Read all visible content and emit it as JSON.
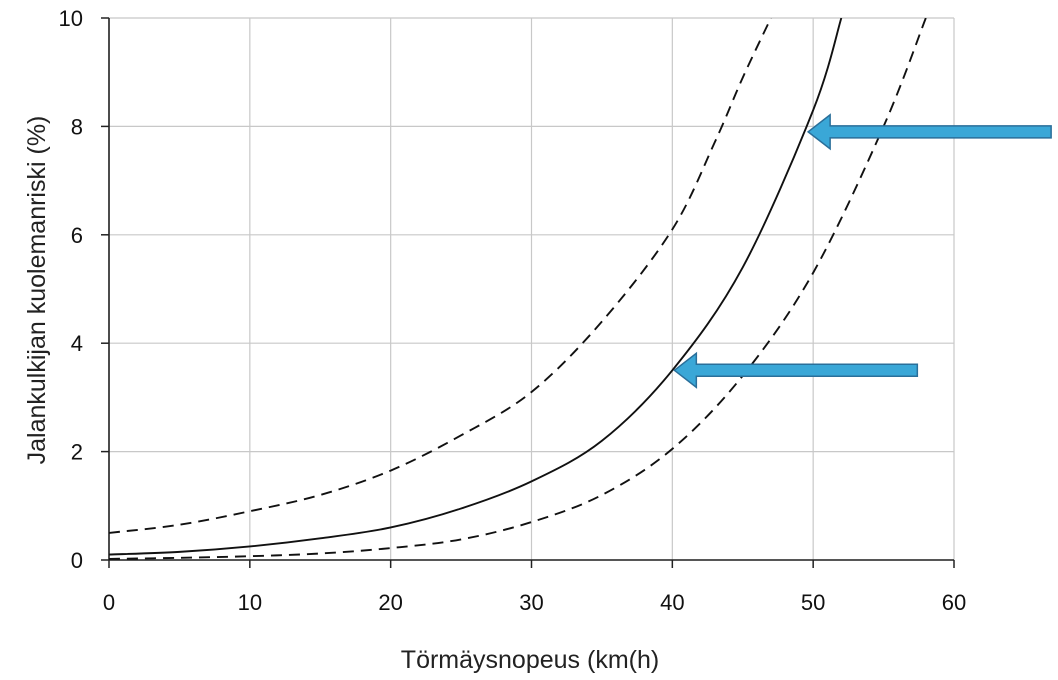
{
  "chart_data": {
    "type": "line",
    "xlabel": "Törmäysnopeus (km(h)",
    "ylabel": "Jalankulkijan kuolemanriski (%)",
    "xlim": [
      0,
      60
    ],
    "ylim": [
      0,
      10
    ],
    "x_ticks": [
      "0",
      "10",
      "20",
      "30",
      "40",
      "50",
      "60"
    ],
    "y_ticks": [
      "0",
      "2",
      "4",
      "6",
      "8",
      "10"
    ],
    "grid": true,
    "series": [
      {
        "style": "solid",
        "color": "#111111",
        "x": [
          0,
          5,
          10,
          15,
          20,
          25,
          30,
          35,
          40,
          45,
          50,
          52
        ],
        "y": [
          0.1,
          0.15,
          0.25,
          0.4,
          0.6,
          0.95,
          1.45,
          2.2,
          3.5,
          5.4,
          8.3,
          10
        ]
      },
      {
        "style": "dashed",
        "color": "#111111",
        "x": [
          0,
          5,
          10,
          15,
          20,
          25,
          30,
          35,
          40,
          43,
          45,
          47
        ],
        "y": [
          0.5,
          0.65,
          0.9,
          1.2,
          1.65,
          2.3,
          3.1,
          4.4,
          6.1,
          7.7,
          8.9,
          10
        ]
      },
      {
        "style": "dashed",
        "color": "#111111",
        "x": [
          0,
          5,
          10,
          15,
          20,
          25,
          30,
          35,
          40,
          45,
          50,
          55,
          58
        ],
        "y": [
          0.02,
          0.04,
          0.07,
          0.12,
          0.22,
          0.38,
          0.7,
          1.2,
          2.05,
          3.4,
          5.3,
          8.0,
          10
        ]
      }
    ],
    "annotations": [
      {
        "type": "arrow",
        "color": "#3aa7d7",
        "points_to": {
          "x": 49.5,
          "y": 7.9
        }
      },
      {
        "type": "arrow",
        "color": "#3aa7d7",
        "points_to": {
          "x": 40,
          "y": 3.5
        }
      }
    ]
  }
}
